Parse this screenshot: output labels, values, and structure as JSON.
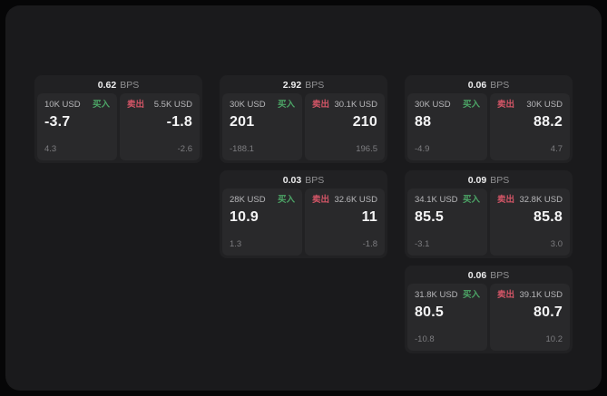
{
  "labels": {
    "bps_unit": "BPS",
    "buy": "买入",
    "sell": "卖出"
  },
  "colors": {
    "buy": "#4ca466",
    "sell": "#d25566"
  },
  "cards": [
    {
      "bps": "0.62",
      "grid": {
        "col": 1,
        "row": 1
      },
      "buy": {
        "amount": "10K USD",
        "price": "-3.7",
        "delta": "4.3"
      },
      "sell": {
        "amount": "5.5K USD",
        "price": "-1.8",
        "delta": "-2.6"
      }
    },
    {
      "bps": "2.92",
      "grid": {
        "col": 2,
        "row": 1
      },
      "buy": {
        "amount": "30K USD",
        "price": "201",
        "delta": "-188.1"
      },
      "sell": {
        "amount": "30.1K USD",
        "price": "210",
        "delta": "196.5"
      }
    },
    {
      "bps": "0.06",
      "grid": {
        "col": 3,
        "row": 1
      },
      "buy": {
        "amount": "30K USD",
        "price": "88",
        "delta": "-4.9"
      },
      "sell": {
        "amount": "30K USD",
        "price": "88.2",
        "delta": "4.7"
      }
    },
    {
      "bps": "0.03",
      "grid": {
        "col": 2,
        "row": 2
      },
      "buy": {
        "amount": "28K USD",
        "price": "10.9",
        "delta": "1.3"
      },
      "sell": {
        "amount": "32.6K USD",
        "price": "11",
        "delta": "-1.8"
      }
    },
    {
      "bps": "0.09",
      "grid": {
        "col": 3,
        "row": 2
      },
      "buy": {
        "amount": "34.1K USD",
        "price": "85.5",
        "delta": "-3.1"
      },
      "sell": {
        "amount": "32.8K USD",
        "price": "85.8",
        "delta": "3.0"
      }
    },
    {
      "bps": "0.06",
      "grid": {
        "col": 3,
        "row": 3
      },
      "buy": {
        "amount": "31.8K USD",
        "price": "80.5",
        "delta": "-10.8"
      },
      "sell": {
        "amount": "39.1K USD",
        "price": "80.7",
        "delta": "10.2"
      }
    }
  ]
}
